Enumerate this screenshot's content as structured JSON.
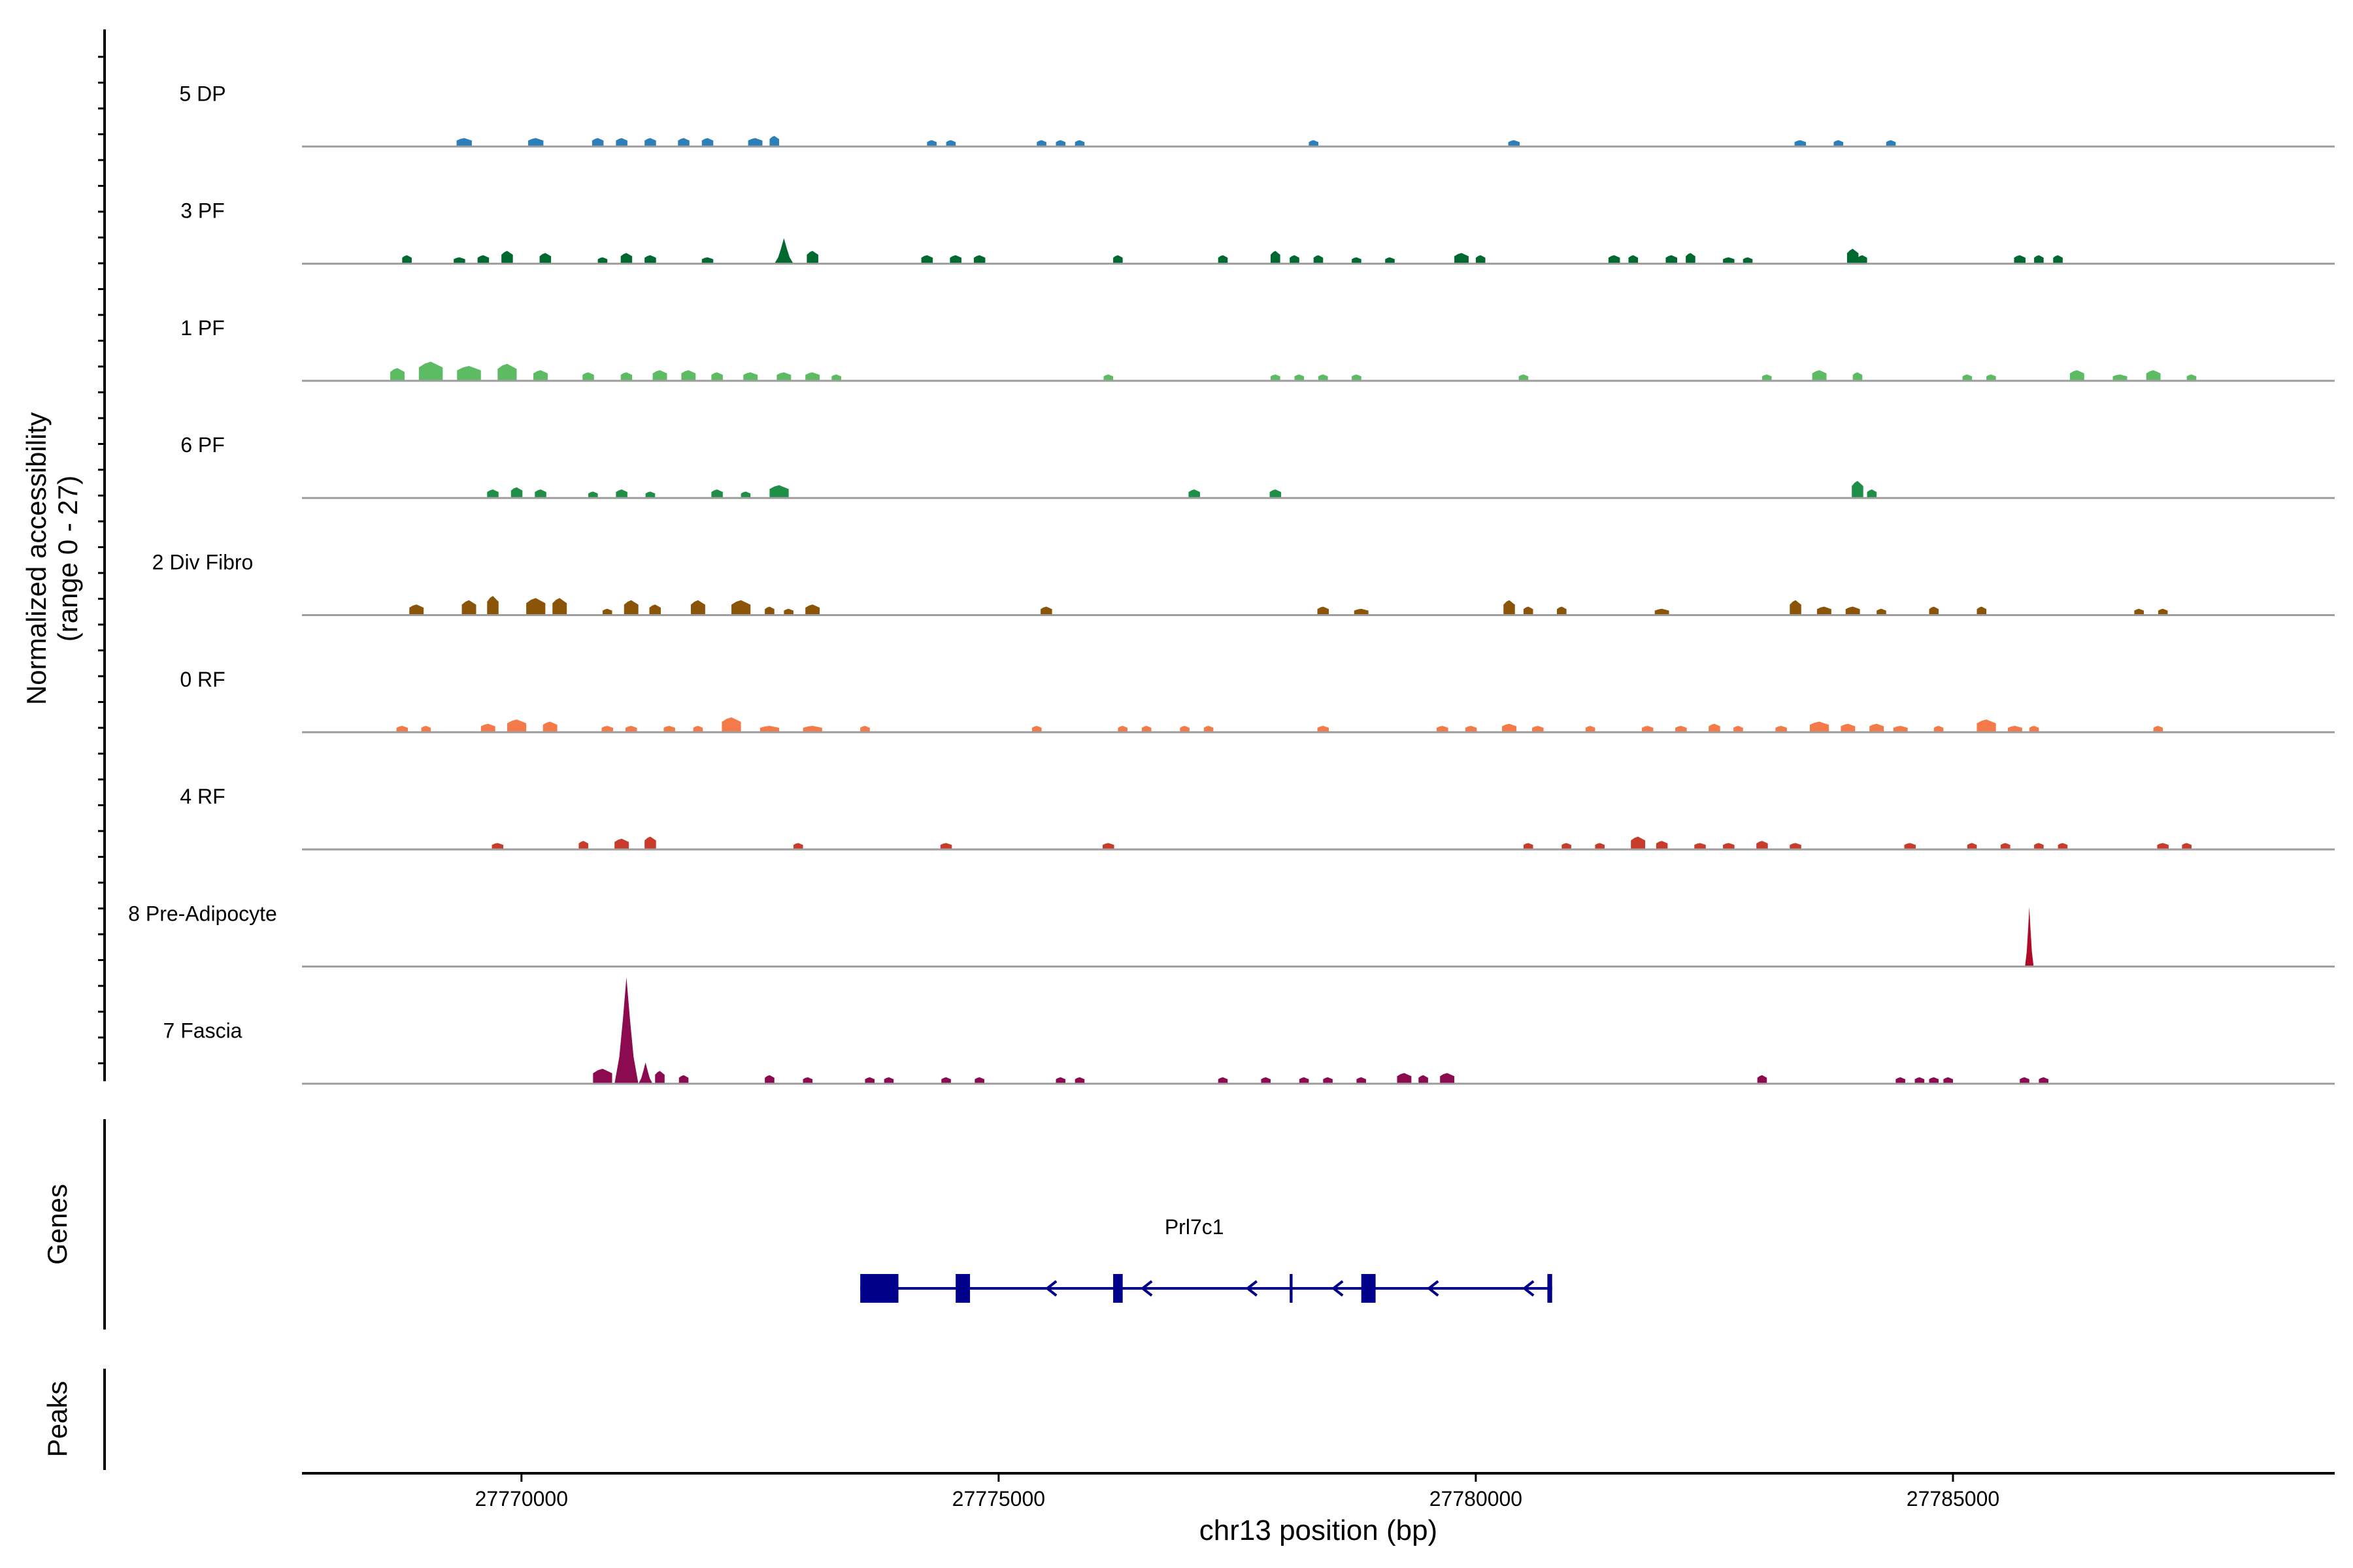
{
  "chart_data": {
    "type": "area",
    "title": "",
    "y_axis_label": [
      "Normalized accessibility",
      "(range 0 - 27)"
    ],
    "y_range": [
      0,
      27
    ],
    "x_axis_label": "chr13 position (bp)",
    "x_range": [
      27767700,
      27789000
    ],
    "x_ticks": [
      27770000,
      27775000,
      27780000,
      27785000
    ],
    "x_tick_labels": [
      "27770000",
      "27775000",
      "27780000",
      "27785000"
    ],
    "tracks": [
      {
        "name": "5 DP",
        "color": "#2c7fb8",
        "peaks": [
          [
            27769400,
            160,
            2
          ],
          [
            27770150,
            160,
            2
          ],
          [
            27770800,
            120,
            2
          ],
          [
            27771050,
            120,
            2
          ],
          [
            27771350,
            120,
            2
          ],
          [
            27771700,
            120,
            2
          ],
          [
            27771950,
            120,
            2
          ],
          [
            27772450,
            150,
            2
          ],
          [
            27772650,
            100,
            2.5
          ],
          [
            27774300,
            100,
            1.5
          ],
          [
            27774500,
            100,
            1.5
          ],
          [
            27775450,
            100,
            1.5
          ],
          [
            27775650,
            100,
            1.5
          ],
          [
            27775850,
            100,
            1.5
          ],
          [
            27778300,
            100,
            1.5
          ],
          [
            27780400,
            120,
            1.5
          ],
          [
            27783400,
            120,
            1.5
          ],
          [
            27783800,
            100,
            1.5
          ],
          [
            27784350,
            100,
            1.5
          ]
        ]
      },
      {
        "name": "3 PF",
        "color": "#00692f",
        "peaks": [
          [
            27768800,
            100,
            2
          ],
          [
            27769350,
            120,
            1.5
          ],
          [
            27769600,
            120,
            2
          ],
          [
            27769850,
            120,
            3
          ],
          [
            27770250,
            120,
            2.5
          ],
          [
            27770850,
            100,
            1.5
          ],
          [
            27771100,
            120,
            2.5
          ],
          [
            27771350,
            120,
            2
          ],
          [
            27771950,
            120,
            1.5
          ],
          [
            27772750,
            200,
            6
          ],
          [
            27773050,
            120,
            3
          ],
          [
            27774250,
            120,
            2
          ],
          [
            27774550,
            120,
            2
          ],
          [
            27774800,
            120,
            2
          ],
          [
            27776250,
            100,
            2
          ],
          [
            27777350,
            100,
            2
          ],
          [
            27777900,
            100,
            3
          ],
          [
            27778100,
            100,
            2
          ],
          [
            27778350,
            100,
            2
          ],
          [
            27778750,
            100,
            1.5
          ],
          [
            27779100,
            100,
            1.5
          ],
          [
            27779850,
            150,
            2.5
          ],
          [
            27780050,
            100,
            2
          ],
          [
            27781450,
            120,
            2
          ],
          [
            27781650,
            100,
            2
          ],
          [
            27782050,
            120,
            2
          ],
          [
            27782250,
            100,
            2.5
          ],
          [
            27782650,
            120,
            1.5
          ],
          [
            27782850,
            100,
            1.5
          ],
          [
            27783950,
            120,
            3.5
          ],
          [
            27784050,
            100,
            2
          ],
          [
            27785700,
            120,
            2
          ],
          [
            27785900,
            100,
            2
          ],
          [
            27786100,
            100,
            2
          ]
        ]
      },
      {
        "name": "1 PF",
        "color": "#5dbb63",
        "peaks": [
          [
            27768700,
            150,
            3
          ],
          [
            27769050,
            250,
            4.5
          ],
          [
            27769450,
            250,
            3.5
          ],
          [
            27769850,
            200,
            4
          ],
          [
            27770200,
            150,
            2.5
          ],
          [
            27770700,
            120,
            2
          ],
          [
            27771100,
            120,
            2
          ],
          [
            27771450,
            150,
            2.5
          ],
          [
            27771750,
            150,
            2.5
          ],
          [
            27772050,
            120,
            2
          ],
          [
            27772400,
            150,
            2
          ],
          [
            27772750,
            150,
            2
          ],
          [
            27773050,
            150,
            2
          ],
          [
            27773300,
            100,
            1.5
          ],
          [
            27776150,
            100,
            1.5
          ],
          [
            27777900,
            100,
            1.5
          ],
          [
            27778150,
            100,
            1.5
          ],
          [
            27778400,
            100,
            1.5
          ],
          [
            27778750,
            100,
            1.5
          ],
          [
            27780500,
            100,
            1.5
          ],
          [
            27783050,
            100,
            1.5
          ],
          [
            27783600,
            150,
            2.5
          ],
          [
            27784000,
            100,
            2
          ],
          [
            27785150,
            100,
            1.5
          ],
          [
            27785400,
            100,
            1.5
          ],
          [
            27786300,
            150,
            2.5
          ],
          [
            27786750,
            150,
            1.5
          ],
          [
            27787100,
            150,
            2.5
          ],
          [
            27787500,
            100,
            1.5
          ]
        ]
      },
      {
        "name": "6 PF",
        "color": "#1f8f48",
        "peaks": [
          [
            27769700,
            120,
            2
          ],
          [
            27769950,
            120,
            2.5
          ],
          [
            27770200,
            120,
            2
          ],
          [
            27770750,
            100,
            1.5
          ],
          [
            27771050,
            120,
            2
          ],
          [
            27771350,
            100,
            1.5
          ],
          [
            27772050,
            120,
            2
          ],
          [
            27772350,
            100,
            1.5
          ],
          [
            27772700,
            200,
            3
          ],
          [
            27777050,
            120,
            2
          ],
          [
            27777900,
            120,
            2
          ],
          [
            27784000,
            120,
            4
          ],
          [
            27784150,
            100,
            2
          ]
        ]
      },
      {
        "name": "2 Div Fibro",
        "color": "#8a5509",
        "peaks": [
          [
            27768900,
            150,
            2.5
          ],
          [
            27769450,
            150,
            3.5
          ],
          [
            27769700,
            120,
            4.5
          ],
          [
            27770150,
            200,
            4
          ],
          [
            27770400,
            150,
            4
          ],
          [
            27770900,
            100,
            1.5
          ],
          [
            27771150,
            150,
            3.5
          ],
          [
            27771400,
            120,
            2.5
          ],
          [
            27771850,
            150,
            3.5
          ],
          [
            27772300,
            200,
            3.5
          ],
          [
            27772600,
            100,
            2
          ],
          [
            27772800,
            100,
            1.5
          ],
          [
            27773050,
            150,
            2.5
          ],
          [
            27775500,
            120,
            2
          ],
          [
            27778400,
            120,
            2
          ],
          [
            27778800,
            150,
            1.5
          ],
          [
            27780350,
            120,
            3.5
          ],
          [
            27780550,
            100,
            2
          ],
          [
            27780900,
            100,
            2
          ],
          [
            27781950,
            150,
            1.5
          ],
          [
            27783350,
            120,
            3.5
          ],
          [
            27783650,
            150,
            2
          ],
          [
            27783950,
            150,
            2
          ],
          [
            27784250,
            100,
            1.5
          ],
          [
            27784800,
            100,
            2
          ],
          [
            27785300,
            100,
            2
          ],
          [
            27786950,
            100,
            1.5
          ],
          [
            27787200,
            100,
            1.5
          ]
        ]
      },
      {
        "name": "0 RF",
        "color": "#f47a4a",
        "peaks": [
          [
            27768750,
            120,
            1.5
          ],
          [
            27769000,
            100,
            1.5
          ],
          [
            27769650,
            150,
            2
          ],
          [
            27769950,
            200,
            3
          ],
          [
            27770300,
            150,
            2.5
          ],
          [
            27770900,
            120,
            1.5
          ],
          [
            27771150,
            120,
            1.5
          ],
          [
            27771550,
            120,
            1.5
          ],
          [
            27771850,
            100,
            1.5
          ],
          [
            27772200,
            200,
            3.5
          ],
          [
            27772600,
            200,
            1.5
          ],
          [
            27773050,
            200,
            1.5
          ],
          [
            27773600,
            100,
            1.5
          ],
          [
            27775400,
            100,
            1.5
          ],
          [
            27776300,
            100,
            1.5
          ],
          [
            27776550,
            100,
            1.5
          ],
          [
            27776950,
            100,
            1.5
          ],
          [
            27777200,
            100,
            1.5
          ],
          [
            27778400,
            120,
            1.5
          ],
          [
            27779650,
            120,
            1.5
          ],
          [
            27779950,
            120,
            1.5
          ],
          [
            27780350,
            150,
            2
          ],
          [
            27780650,
            120,
            1.5
          ],
          [
            27781200,
            100,
            1.5
          ],
          [
            27781800,
            120,
            1.5
          ],
          [
            27782150,
            120,
            1.5
          ],
          [
            27782500,
            120,
            2
          ],
          [
            27782750,
            100,
            1.5
          ],
          [
            27783200,
            120,
            1.5
          ],
          [
            27783600,
            200,
            2.5
          ],
          [
            27783900,
            150,
            2
          ],
          [
            27784200,
            150,
            2
          ],
          [
            27784450,
            150,
            1.5
          ],
          [
            27784850,
            100,
            1.5
          ],
          [
            27785350,
            200,
            3
          ],
          [
            27785650,
            150,
            1.5
          ],
          [
            27785850,
            100,
            1.5
          ],
          [
            27787150,
            100,
            1.5
          ]
        ]
      },
      {
        "name": "4 RF",
        "color": "#c93b2a",
        "peaks": [
          [
            27769750,
            120,
            1.5
          ],
          [
            27770650,
            100,
            2
          ],
          [
            27771050,
            150,
            2.5
          ],
          [
            27771350,
            120,
            3
          ],
          [
            27772900,
            100,
            1.5
          ],
          [
            27774450,
            120,
            1.5
          ],
          [
            27776150,
            120,
            1.5
          ],
          [
            27780550,
            100,
            1.5
          ],
          [
            27780950,
            100,
            1.5
          ],
          [
            27781300,
            100,
            1.5
          ],
          [
            27781700,
            150,
            3
          ],
          [
            27781950,
            120,
            2
          ],
          [
            27782350,
            120,
            1.5
          ],
          [
            27782650,
            120,
            1.5
          ],
          [
            27783000,
            120,
            2
          ],
          [
            27783350,
            120,
            1.5
          ],
          [
            27784550,
            120,
            1.5
          ],
          [
            27785200,
            100,
            1.5
          ],
          [
            27785550,
            100,
            1.5
          ],
          [
            27785900,
            100,
            1.5
          ],
          [
            27786150,
            100,
            1.5
          ],
          [
            27787200,
            120,
            1.5
          ],
          [
            27787450,
            100,
            1.5
          ]
        ]
      },
      {
        "name": "8 Pre-Adipocyte",
        "color": "#b00a29",
        "peaks": [
          [
            27785800,
            90,
            14
          ]
        ]
      },
      {
        "name": "7 Fascia",
        "color": "#8b0a50",
        "peaks": [
          [
            27770850,
            200,
            3.5
          ],
          [
            27771100,
            250,
            25
          ],
          [
            27771300,
            150,
            5
          ],
          [
            27771450,
            100,
            3
          ],
          [
            27771700,
            100,
            2
          ],
          [
            27772600,
            100,
            2
          ],
          [
            27773000,
            100,
            1.5
          ],
          [
            27773650,
            100,
            1.5
          ],
          [
            27773850,
            100,
            1.5
          ],
          [
            27774450,
            100,
            1.5
          ],
          [
            27774800,
            100,
            1.5
          ],
          [
            27775650,
            100,
            1.5
          ],
          [
            27775850,
            100,
            1.5
          ],
          [
            27777350,
            100,
            1.5
          ],
          [
            27777800,
            100,
            1.5
          ],
          [
            27778200,
            100,
            1.5
          ],
          [
            27778450,
            100,
            1.5
          ],
          [
            27778800,
            100,
            1.5
          ],
          [
            27779250,
            150,
            2.5
          ],
          [
            27779450,
            100,
            2
          ],
          [
            27779700,
            150,
            2.5
          ],
          [
            27783000,
            100,
            2
          ],
          [
            27784450,
            100,
            1.5
          ],
          [
            27784650,
            100,
            1.5
          ],
          [
            27784800,
            100,
            1.5
          ],
          [
            27784950,
            100,
            1.5
          ],
          [
            27785750,
            100,
            1.5
          ],
          [
            27785950,
            100,
            1.5
          ]
        ]
      }
    ],
    "genes_label": "Genes",
    "peaks_label": "Peaks",
    "gene": {
      "name": "Prl7c1",
      "start": 27773550,
      "end": 27780800,
      "strand": "-",
      "color": "#00008b",
      "exons": [
        [
          27773550,
          27773950
        ],
        [
          27774550,
          27774700
        ],
        [
          27776200,
          27776300
        ],
        [
          27778050,
          27778080
        ],
        [
          27778800,
          27778950
        ],
        [
          27780750,
          27780800
        ]
      ],
      "arrows": [
        27775550,
        27776550,
        27777650,
        27778550,
        27779550,
        27780550
      ]
    }
  }
}
